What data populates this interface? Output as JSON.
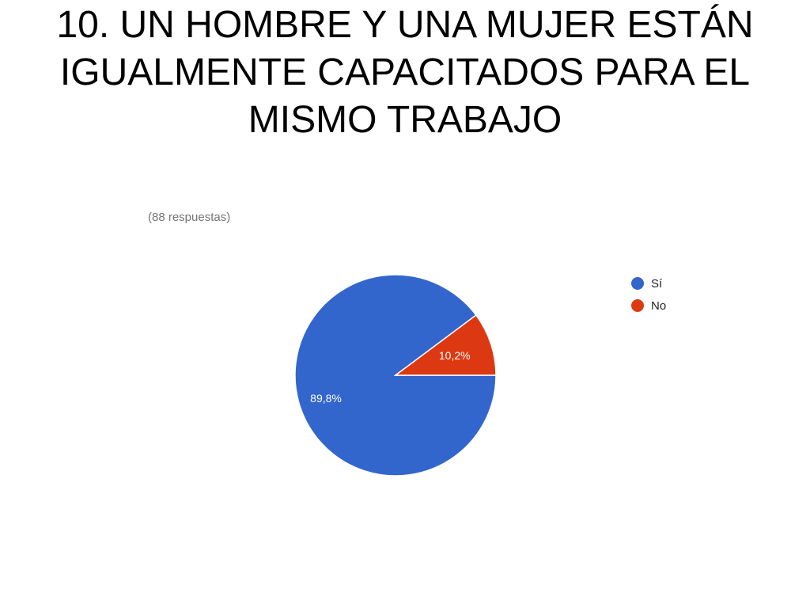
{
  "slide": {
    "title": "10. UN HOMBRE Y UNA MUJER ESTÁN IGUALMENTE CAPACITADOS PARA EL MISMO TRABAJO"
  },
  "chart_data": {
    "type": "pie",
    "title": "10. UN HOMBRE Y UNA MUJER ESTÁN IGUALMENTE CAPACITADOS PARA EL MISMO TRABAJO",
    "subtitle": "(88 respuestas)",
    "categories": [
      "Sí",
      "No"
    ],
    "values": [
      89.8,
      10.2
    ],
    "value_labels": [
      "89,8%",
      "10,2%"
    ],
    "colors": [
      "#3366cc",
      "#dc3912"
    ],
    "legend_position": "right"
  }
}
